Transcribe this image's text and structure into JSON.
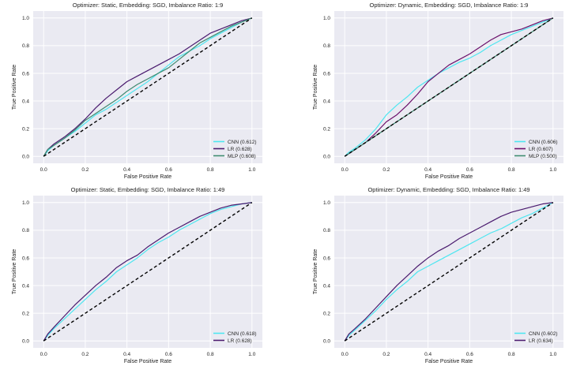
{
  "chart_data": [
    {
      "type": "line",
      "title": "Optimizer: Static, Embedding: SGD, Imbalance Ratio: 1:9",
      "xlabel": "False Positive Rate",
      "ylabel": "True Positive Rate",
      "xlim": [
        0,
        1
      ],
      "ylim": [
        0,
        1
      ],
      "xticks": [
        "0.0",
        "0.2",
        "0.4",
        "0.6",
        "0.8",
        "1.0"
      ],
      "yticks": [
        "0.0",
        "0.2",
        "0.4",
        "0.6",
        "0.8",
        "1.0"
      ],
      "grid": true,
      "legend": "bottom-right",
      "series": [
        {
          "name": "CNN (0.612)",
          "color": "#4ee6f0",
          "x": [
            0,
            0.02,
            0.05,
            0.1,
            0.15,
            0.2,
            0.25,
            0.3,
            0.35,
            0.4,
            0.45,
            0.5,
            0.55,
            0.6,
            0.65,
            0.7,
            0.75,
            0.8,
            0.85,
            0.9,
            0.95,
            1.0
          ],
          "y": [
            0,
            0.04,
            0.08,
            0.13,
            0.18,
            0.24,
            0.3,
            0.34,
            0.39,
            0.44,
            0.49,
            0.54,
            0.6,
            0.66,
            0.72,
            0.76,
            0.8,
            0.85,
            0.89,
            0.93,
            0.97,
            1.0
          ]
        },
        {
          "name": "LR (0.628)",
          "color": "#4a1a6e",
          "x": [
            0,
            0.02,
            0.05,
            0.1,
            0.15,
            0.2,
            0.25,
            0.3,
            0.35,
            0.4,
            0.45,
            0.5,
            0.55,
            0.6,
            0.65,
            0.7,
            0.75,
            0.8,
            0.85,
            0.9,
            0.95,
            1.0
          ],
          "y": [
            0,
            0.05,
            0.09,
            0.14,
            0.2,
            0.27,
            0.35,
            0.42,
            0.48,
            0.54,
            0.58,
            0.62,
            0.66,
            0.7,
            0.74,
            0.79,
            0.84,
            0.89,
            0.92,
            0.95,
            0.98,
            1.0
          ]
        },
        {
          "name": "MLP (0.608)",
          "color": "#3e8a70",
          "x": [
            0,
            0.02,
            0.05,
            0.1,
            0.15,
            0.2,
            0.25,
            0.3,
            0.35,
            0.4,
            0.45,
            0.5,
            0.55,
            0.6,
            0.65,
            0.7,
            0.75,
            0.8,
            0.85,
            0.9,
            0.95,
            1.0
          ],
          "y": [
            0,
            0.05,
            0.08,
            0.13,
            0.19,
            0.26,
            0.31,
            0.36,
            0.41,
            0.47,
            0.52,
            0.56,
            0.6,
            0.64,
            0.7,
            0.76,
            0.82,
            0.86,
            0.9,
            0.94,
            0.97,
            1.0
          ]
        }
      ],
      "diagonal": {
        "x": [
          0,
          1
        ],
        "y": [
          0,
          1
        ],
        "color": "#000000",
        "style": "dashed"
      }
    },
    {
      "type": "line",
      "title": "Optimizer: Dynamic, Embedding: SGD, Imbalance Ratio: 1:9",
      "xlabel": "False Positive Rate",
      "ylabel": "True Positive Rate",
      "xlim": [
        0,
        1
      ],
      "ylim": [
        0,
        1
      ],
      "xticks": [
        "0.0",
        "0.2",
        "0.4",
        "0.6",
        "0.8",
        "1.0"
      ],
      "yticks": [
        "0.0",
        "0.2",
        "0.4",
        "0.6",
        "0.8",
        "1.0"
      ],
      "grid": true,
      "legend": "bottom-right",
      "series": [
        {
          "name": "CNN (0.606)",
          "color": "#4ee6f0",
          "x": [
            0,
            0.02,
            0.05,
            0.1,
            0.15,
            0.2,
            0.25,
            0.3,
            0.35,
            0.4,
            0.45,
            0.5,
            0.55,
            0.6,
            0.65,
            0.7,
            0.75,
            0.8,
            0.85,
            0.9,
            0.95,
            1.0
          ],
          "y": [
            0,
            0.03,
            0.06,
            0.12,
            0.2,
            0.3,
            0.37,
            0.43,
            0.5,
            0.55,
            0.6,
            0.64,
            0.68,
            0.71,
            0.75,
            0.8,
            0.84,
            0.88,
            0.91,
            0.94,
            0.97,
            1.0
          ]
        },
        {
          "name": "LR (0.607)",
          "color": "#6b0f6a",
          "x": [
            0,
            0.02,
            0.05,
            0.1,
            0.15,
            0.2,
            0.25,
            0.3,
            0.35,
            0.4,
            0.45,
            0.5,
            0.55,
            0.6,
            0.65,
            0.7,
            0.75,
            0.8,
            0.85,
            0.9,
            0.95,
            1.0
          ],
          "y": [
            0,
            0.02,
            0.05,
            0.1,
            0.17,
            0.25,
            0.3,
            0.37,
            0.45,
            0.54,
            0.6,
            0.66,
            0.7,
            0.74,
            0.79,
            0.84,
            0.88,
            0.9,
            0.92,
            0.95,
            0.98,
            1.0
          ]
        },
        {
          "name": "MLP (0.500)",
          "color": "#3e8a70",
          "x": [
            0,
            1
          ],
          "y": [
            0,
            1
          ]
        }
      ],
      "diagonal": {
        "x": [
          0,
          1
        ],
        "y": [
          0,
          1
        ],
        "color": "#000000",
        "style": "dashed"
      }
    },
    {
      "type": "line",
      "title": "Optimizer: Static, Embedding: SGD, Imbalance Ratio: 1:49",
      "xlabel": "False Positive Rate",
      "ylabel": "True Positive Rate",
      "xlim": [
        0,
        1
      ],
      "ylim": [
        0,
        1
      ],
      "xticks": [
        "0.0",
        "0.2",
        "0.4",
        "0.6",
        "0.8",
        "1.0"
      ],
      "yticks": [
        "0.0",
        "0.2",
        "0.4",
        "0.6",
        "0.8",
        "1.0"
      ],
      "grid": true,
      "legend": "bottom-right",
      "series": [
        {
          "name": "CNN (0.618)",
          "color": "#4ee6f0",
          "x": [
            0,
            0.02,
            0.05,
            0.1,
            0.15,
            0.2,
            0.25,
            0.3,
            0.35,
            0.4,
            0.45,
            0.5,
            0.55,
            0.6,
            0.65,
            0.7,
            0.75,
            0.8,
            0.85,
            0.9,
            0.95,
            1.0
          ],
          "y": [
            0,
            0.04,
            0.09,
            0.16,
            0.23,
            0.3,
            0.37,
            0.43,
            0.5,
            0.55,
            0.6,
            0.66,
            0.71,
            0.75,
            0.8,
            0.84,
            0.88,
            0.92,
            0.95,
            0.97,
            0.99,
            1.0
          ]
        },
        {
          "name": "LR (0.628)",
          "color": "#4a1a6e",
          "x": [
            0,
            0.02,
            0.05,
            0.1,
            0.15,
            0.2,
            0.25,
            0.3,
            0.35,
            0.4,
            0.45,
            0.5,
            0.55,
            0.6,
            0.65,
            0.7,
            0.75,
            0.8,
            0.85,
            0.9,
            0.95,
            1.0
          ],
          "y": [
            0,
            0.05,
            0.1,
            0.18,
            0.26,
            0.33,
            0.4,
            0.46,
            0.53,
            0.58,
            0.62,
            0.68,
            0.73,
            0.78,
            0.82,
            0.86,
            0.9,
            0.93,
            0.96,
            0.98,
            0.99,
            1.0
          ]
        }
      ],
      "diagonal": {
        "x": [
          0,
          1
        ],
        "y": [
          0,
          1
        ],
        "color": "#000000",
        "style": "dashed"
      }
    },
    {
      "type": "line",
      "title": "Optimizer: Dynamic, Embedding: SGD, Imbalance Ratio: 1:49",
      "xlabel": "False Positive Rate",
      "ylabel": "True Positive Rate",
      "xlim": [
        0,
        1
      ],
      "ylim": [
        0,
        1
      ],
      "xticks": [
        "0.0",
        "0.2",
        "0.4",
        "0.6",
        "0.8",
        "1.0"
      ],
      "yticks": [
        "0.0",
        "0.2",
        "0.4",
        "0.6",
        "0.8",
        "1.0"
      ],
      "grid": true,
      "legend": "bottom-right",
      "series": [
        {
          "name": "CNN (0.602)",
          "color": "#4ee6f0",
          "x": [
            0,
            0.02,
            0.05,
            0.1,
            0.15,
            0.2,
            0.25,
            0.3,
            0.35,
            0.4,
            0.45,
            0.5,
            0.55,
            0.6,
            0.65,
            0.7,
            0.75,
            0.8,
            0.85,
            0.9,
            0.95,
            1.0
          ],
          "y": [
            0,
            0.04,
            0.08,
            0.15,
            0.22,
            0.3,
            0.37,
            0.43,
            0.5,
            0.54,
            0.58,
            0.62,
            0.66,
            0.7,
            0.74,
            0.78,
            0.81,
            0.85,
            0.89,
            0.92,
            0.96,
            1.0
          ]
        },
        {
          "name": "LR (0.634)",
          "color": "#4a1a6e",
          "x": [
            0,
            0.02,
            0.05,
            0.1,
            0.15,
            0.2,
            0.25,
            0.3,
            0.35,
            0.4,
            0.45,
            0.5,
            0.55,
            0.6,
            0.65,
            0.7,
            0.75,
            0.8,
            0.85,
            0.9,
            0.95,
            1.0
          ],
          "y": [
            0,
            0.05,
            0.09,
            0.16,
            0.24,
            0.32,
            0.4,
            0.47,
            0.54,
            0.6,
            0.65,
            0.69,
            0.74,
            0.78,
            0.82,
            0.86,
            0.9,
            0.93,
            0.95,
            0.97,
            0.99,
            1.0
          ]
        }
      ],
      "diagonal": {
        "x": [
          0,
          1
        ],
        "y": [
          0,
          1
        ],
        "color": "#000000",
        "style": "dashed"
      }
    }
  ]
}
